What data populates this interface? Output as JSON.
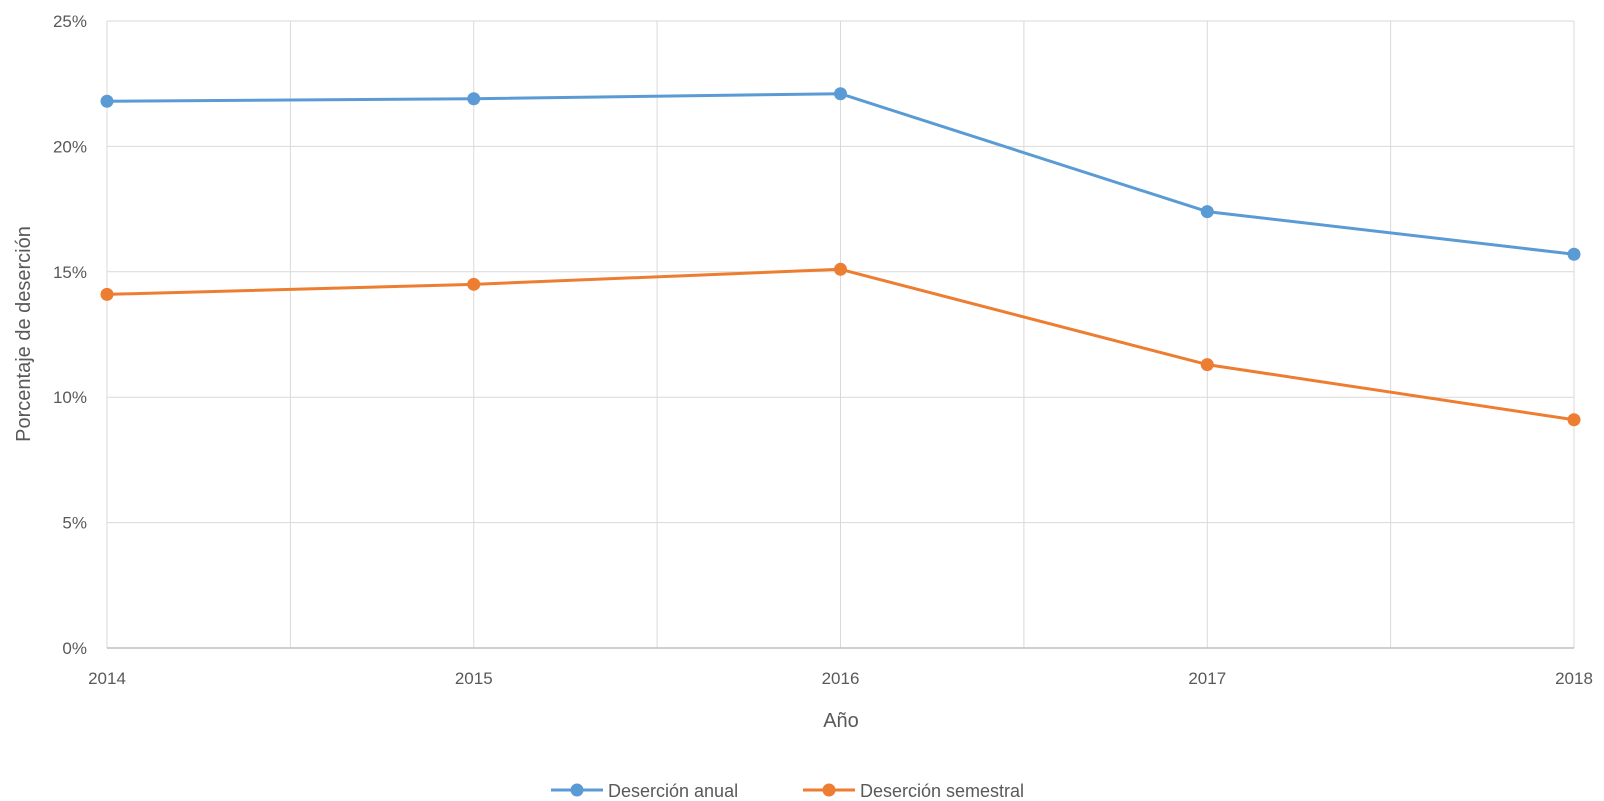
{
  "chart_data": {
    "type": "line",
    "title": "",
    "xlabel": "Año",
    "ylabel": "Porcentaje de deserción",
    "x": [
      2014,
      2015,
      2016,
      2017,
      2018
    ],
    "xticks": [
      "2014",
      "2015",
      "2016",
      "2017",
      "2018"
    ],
    "ylim": [
      0,
      25
    ],
    "yticks": [
      "0%",
      "5%",
      "10%",
      "15%",
      "20%",
      "25%"
    ],
    "grid": true,
    "legend_position": "bottom",
    "series": [
      {
        "name": "Deserción anual",
        "color": "#5B9BD5",
        "values": [
          21.8,
          21.9,
          22.1,
          17.4,
          15.7
        ]
      },
      {
        "name": "Deserción semestral",
        "color": "#ED7D31",
        "values": [
          14.1,
          14.5,
          15.1,
          11.3,
          9.1
        ]
      }
    ]
  }
}
